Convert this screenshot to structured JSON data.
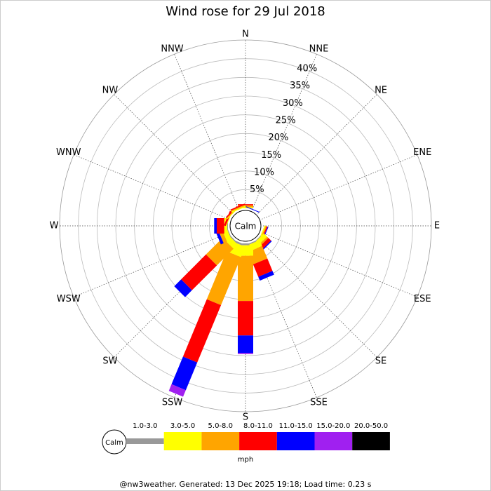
{
  "chart_data": {
    "type": "wind_rose",
    "title": "Wind rose for 29 Jul 2018",
    "directions": [
      "N",
      "NNE",
      "NE",
      "ENE",
      "E",
      "ESE",
      "SE",
      "SSE",
      "S",
      "SSW",
      "SW",
      "WSW",
      "W",
      "WNW",
      "NW",
      "NNW"
    ],
    "calm_label": "Calm",
    "rlim": [
      0,
      45
    ],
    "rticks": [
      {
        "value": 5,
        "label": "5%"
      },
      {
        "value": 10,
        "label": "10%"
      },
      {
        "value": 15,
        "label": "15%"
      },
      {
        "value": 20,
        "label": "20%"
      },
      {
        "value": 25,
        "label": "25%"
      },
      {
        "value": 30,
        "label": "30%"
      },
      {
        "value": 35,
        "label": "35%"
      },
      {
        "value": 40,
        "label": "40%"
      }
    ],
    "series": [
      {
        "name": "1.0-3.0",
        "color": "#999999",
        "values": [
          0,
          0,
          0,
          0,
          0,
          0,
          0.2,
          0.3,
          0.5,
          0.5,
          0.3,
          0.2,
          0.2,
          0,
          0,
          0
        ]
      },
      {
        "name": "3.0-5.0",
        "color": "#ffff00",
        "values": [
          0.3,
          0,
          0,
          0,
          0,
          0.3,
          1.2,
          1.7,
          2.8,
          3,
          1.6,
          1.3,
          0.8,
          0.2,
          0.2,
          0.3
        ]
      },
      {
        "name": "5.0-8.0",
        "color": "#ffa500",
        "values": [
          0.5,
          0,
          0,
          0,
          0,
          0.3,
          0.5,
          3.6,
          12.1,
          13.9,
          6.3,
          1,
          0,
          0,
          0.2,
          0.3
        ]
      },
      {
        "name": "8.0-11.0",
        "color": "#ff0000",
        "values": [
          0.3,
          0,
          0,
          0,
          0,
          0.3,
          1,
          3.6,
          9.2,
          16.6,
          9.4,
          0,
          2,
          0.5,
          0.3,
          0.3
        ]
      },
      {
        "name": "11.0-15.0",
        "color": "#0000ff",
        "values": [
          0,
          0.2,
          0,
          0,
          0,
          0.2,
          0.3,
          1.1,
          4.7,
          8,
          2.6,
          0.8,
          0.7,
          0,
          0,
          0
        ]
      },
      {
        "name": "15.0-20.0",
        "color": "#a020f0",
        "values": [
          0,
          0,
          0,
          0,
          0,
          0,
          0,
          0,
          0.3,
          1.9,
          0,
          0,
          0,
          0,
          0,
          0
        ]
      },
      {
        "name": "20.0-50.0",
        "color": "#000000",
        "values": [
          0,
          0,
          0,
          0,
          0,
          0,
          0,
          0,
          0,
          0,
          0,
          0,
          0,
          0,
          0,
          0
        ]
      }
    ],
    "unit": "mph",
    "footer": "@nw3weather. Generated: 13 Dec 2025 19:18; Load time: 0.23 s"
  }
}
